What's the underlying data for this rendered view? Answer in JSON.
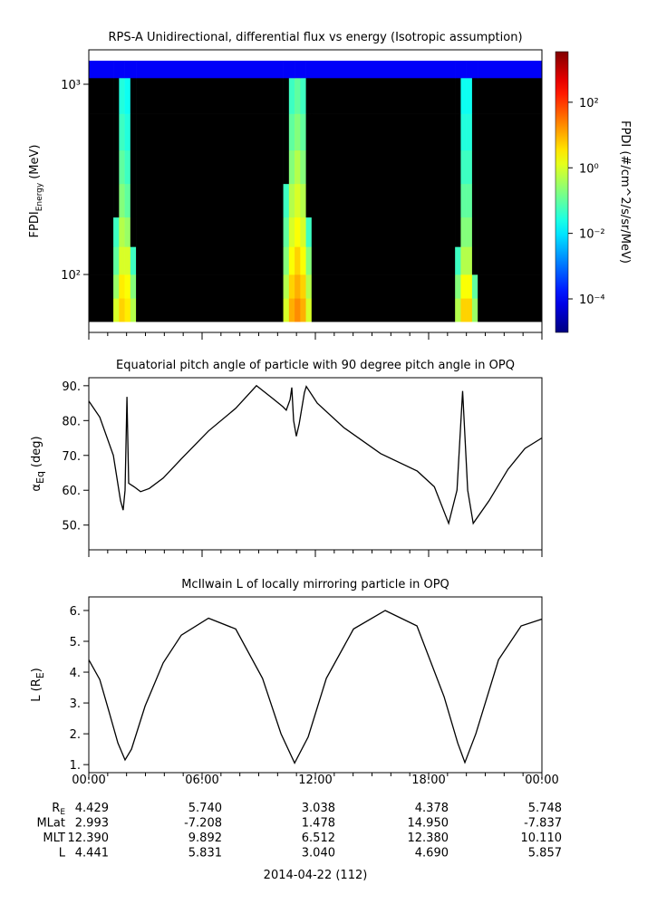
{
  "chart_data": [
    {
      "type": "heatmap",
      "title": "RPS-A Unidirectional, differential flux vs energy (Isotropic assumption)",
      "ylabel": {
        "text": "FPDI",
        "sub": "Energy",
        "unit": "(MeV)"
      },
      "zlabel": "FPDI (#/cm^2/s/sr/MeV)",
      "colormap": "rainbow",
      "xlim": [
        0,
        24
      ],
      "xticks": [
        0,
        6,
        12,
        18,
        24
      ],
      "xminorticks": [
        1,
        2,
        3,
        4,
        5,
        7,
        8,
        9,
        10,
        11,
        13,
        14,
        15,
        16,
        17,
        19,
        20,
        21,
        22,
        23
      ],
      "ylim": [
        49.6,
        1517
      ],
      "ylog": true,
      "yticks": [
        {
          "value": 100,
          "label": "10²"
        },
        {
          "value": 1000,
          "label": "10³"
        }
      ],
      "zlim": [
        9.5e-06,
        3500
      ],
      "zlog": true,
      "zticks": [
        {
          "value": 0.0001,
          "label": "10⁻⁴"
        },
        {
          "value": 0.01,
          "label": "10⁻²"
        },
        {
          "value": 1,
          "label": "10⁰"
        },
        {
          "value": 100,
          "label": "10²"
        }
      ],
      "xbins": [
        0,
        1.3,
        1.6,
        1.9,
        2.2,
        2.5,
        10.3,
        10.6,
        10.9,
        11.2,
        11.5,
        11.8,
        19.4,
        19.7,
        20.0,
        20.3,
        20.6,
        24
      ],
      "ybins": [
        56.5,
        75,
        100,
        140,
        200,
        300,
        450,
        700,
        1080,
        1330
      ],
      "values": [
        [
          null,
          1,
          5,
          3,
          0.5,
          null,
          1,
          10,
          20,
          10,
          1,
          null,
          0.5,
          5,
          5,
          0.3,
          null
        ],
        [
          null,
          0.3,
          3,
          2,
          0.2,
          null,
          0.5,
          5,
          10,
          5,
          0.5,
          null,
          0.2,
          2,
          2,
          0.1,
          null
        ],
        [
          null,
          0.1,
          1,
          1,
          0.05,
          null,
          0.2,
          2,
          5,
          2,
          0.2,
          null,
          0.05,
          0.5,
          0.5,
          null,
          null
        ],
        [
          null,
          0.05,
          0.5,
          0.3,
          null,
          null,
          0.1,
          1,
          2,
          1,
          0.05,
          null,
          null,
          0.2,
          0.2,
          null,
          null
        ],
        [
          null,
          null,
          0.2,
          0.1,
          null,
          null,
          0.05,
          0.5,
          1,
          0.5,
          null,
          null,
          null,
          0.1,
          0.1,
          null,
          null
        ],
        [
          null,
          null,
          0.1,
          0.05,
          null,
          null,
          null,
          0.2,
          0.5,
          0.2,
          null,
          null,
          null,
          0.05,
          0.05,
          null,
          null
        ],
        [
          null,
          null,
          0.05,
          0.03,
          null,
          null,
          null,
          0.1,
          0.2,
          0.1,
          null,
          null,
          null,
          0.03,
          0.03,
          null,
          null
        ],
        [
          null,
          null,
          0.03,
          0.02,
          null,
          null,
          null,
          0.05,
          0.1,
          0.05,
          null,
          null,
          null,
          0.02,
          0.02,
          null,
          null
        ],
        [
          0.0001,
          0.0001,
          0.0001,
          0.0001,
          0.0001,
          0.0001,
          0.0001,
          0.0001,
          0.0001,
          0.0001,
          0.0001,
          0.0001,
          0.0001,
          0.0001,
          0.0001,
          0.0001,
          0.0001
        ]
      ]
    },
    {
      "type": "line",
      "title": "Equatorial pitch angle of particle with 90 degree pitch angle in OPQ",
      "ylabel": {
        "text": "α",
        "sub": "Eq",
        "unit": "(deg)"
      },
      "color": "#000000",
      "xlim": [
        0,
        24
      ],
      "xticks": [
        0,
        6,
        12,
        18,
        24
      ],
      "xminorticks": [
        1,
        2,
        3,
        4,
        5,
        7,
        8,
        9,
        10,
        11,
        13,
        14,
        15,
        16,
        17,
        19,
        20,
        21,
        22,
        23
      ],
      "ylim": [
        42.9,
        92.3
      ],
      "yticks": [
        {
          "value": 50,
          "label": "50."
        },
        {
          "value": 60,
          "label": "60."
        },
        {
          "value": 70,
          "label": "70."
        },
        {
          "value": 80,
          "label": "80."
        },
        {
          "value": 90,
          "label": "90."
        }
      ],
      "x": [
        0,
        0.58,
        1.3,
        1.68,
        1.82,
        1.92,
        2.02,
        2.11,
        2.4,
        2.74,
        3.2,
        3.94,
        4.9,
        6.34,
        7.78,
        8.88,
        9.7,
        10.27,
        10.46,
        10.66,
        10.75,
        10.85,
        10.99,
        11.14,
        11.42,
        11.52,
        12.1,
        13.5,
        15.46,
        17.4,
        18.3,
        19.06,
        19.5,
        19.8,
        20.07,
        20.36,
        21.2,
        22.2,
        23.1,
        24
      ],
      "values": [
        85.6,
        81,
        70,
        57,
        54.3,
        60,
        86.8,
        62,
        61,
        59.6,
        60.5,
        63.5,
        69,
        77,
        83.5,
        90,
        86.5,
        84,
        83,
        86,
        89.5,
        80,
        75.5,
        79,
        88,
        89.8,
        85,
        78,
        70.5,
        65.5,
        61,
        50.5,
        60,
        88.5,
        60,
        50.5,
        57,
        66,
        72,
        75
      ]
    },
    {
      "type": "line",
      "title": "McIlwain L of locally mirroring particle in OPQ",
      "ylabel": {
        "text": "L (R",
        "sub": "E",
        "unit": ")"
      },
      "color": "#000000",
      "xlim": [
        0,
        24
      ],
      "xminorticks": [
        1,
        2,
        3,
        4,
        5,
        7,
        8,
        9,
        10,
        11,
        13,
        14,
        15,
        16,
        17,
        19,
        20,
        21,
        22,
        23
      ],
      "xticks": [
        {
          "value": 0,
          "label": "00:00"
        },
        {
          "value": 6,
          "label": "06:00"
        },
        {
          "value": 12,
          "label": "12:00"
        },
        {
          "value": 18,
          "label": "18:00"
        },
        {
          "value": 24,
          "label": "00:00"
        }
      ],
      "ylim": [
        0.74,
        6.44
      ],
      "yticks": [
        {
          "value": 1,
          "label": "1."
        },
        {
          "value": 2,
          "label": "2."
        },
        {
          "value": 3,
          "label": "3."
        },
        {
          "value": 4,
          "label": "4."
        },
        {
          "value": 5,
          "label": "5."
        },
        {
          "value": 6,
          "label": "6."
        }
      ],
      "x": [
        0,
        0.58,
        1.06,
        1.54,
        1.92,
        2.26,
        2.98,
        3.94,
        4.9,
        6.34,
        7.78,
        9.2,
        10.18,
        10.9,
        11.62,
        12.58,
        14.02,
        15.7,
        17.38,
        18.82,
        19.54,
        19.92,
        20.5,
        21.7,
        22.9,
        24
      ],
      "values": [
        4.4,
        3.76,
        2.74,
        1.7,
        1.15,
        1.5,
        2.9,
        4.3,
        5.2,
        5.75,
        5.4,
        3.8,
        2.0,
        1.05,
        1.9,
        3.8,
        5.4,
        6.0,
        5.5,
        3.2,
        1.7,
        1.07,
        2.0,
        4.4,
        5.5,
        5.72
      ]
    }
  ],
  "ephemeris": {
    "rows": [
      {
        "label": "R",
        "sub": "E",
        "values": [
          "4.429",
          "5.740",
          "3.038",
          "4.378",
          "5.748"
        ]
      },
      {
        "label": "MLat",
        "values": [
          "2.993",
          "-7.208",
          "1.478",
          "14.950",
          "-7.837"
        ]
      },
      {
        "label": "MLT",
        "values": [
          "12.390",
          "9.892",
          "6.512",
          "12.380",
          "10.110"
        ]
      },
      {
        "label": "L",
        "values": [
          "4.441",
          "5.831",
          "3.040",
          "4.690",
          "5.857"
        ]
      }
    ],
    "date": "2014-04-22 (112)"
  }
}
